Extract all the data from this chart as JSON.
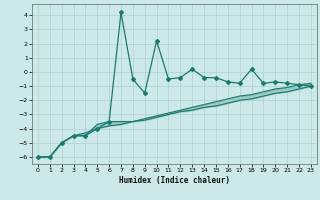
{
  "x": [
    0,
    1,
    2,
    3,
    4,
    5,
    6,
    7,
    8,
    9,
    10,
    11,
    12,
    13,
    14,
    15,
    16,
    17,
    18,
    19,
    20,
    21,
    22,
    23
  ],
  "y_main": [
    -6,
    -6,
    -5,
    -4.5,
    -4.5,
    -4,
    -3.5,
    4.2,
    -0.5,
    -1.5,
    2.2,
    -0.5,
    -0.4,
    0.2,
    -0.4,
    -0.4,
    -0.7,
    -0.8,
    0.2,
    -0.8,
    -0.7,
    -0.8,
    -0.9,
    -1.0
  ],
  "y_line1": [
    -6,
    -6,
    -5,
    -4.5,
    -4.5,
    -3.7,
    -3.5,
    -3.5,
    -3.5,
    -3.4,
    -3.2,
    -3.0,
    -2.8,
    -2.7,
    -2.5,
    -2.4,
    -2.2,
    -2.0,
    -1.9,
    -1.7,
    -1.5,
    -1.4,
    -1.2,
    -1.0
  ],
  "y_line2": [
    -6,
    -6,
    -5,
    -4.5,
    -4.3,
    -4.0,
    -3.8,
    -3.7,
    -3.5,
    -3.3,
    -3.1,
    -2.9,
    -2.7,
    -2.5,
    -2.3,
    -2.1,
    -1.9,
    -1.7,
    -1.6,
    -1.4,
    -1.2,
    -1.1,
    -0.9,
    -0.8
  ],
  "bg_color": "#cce8e8",
  "line_color": "#1a7a6e",
  "grid_color": "#aed0d0",
  "xlabel": "Humidex (Indice chaleur)",
  "ylim": [
    -6.5,
    4.8
  ],
  "xlim": [
    -0.5,
    23.5
  ],
  "yticks": [
    -6,
    -5,
    -4,
    -3,
    -2,
    -1,
    0,
    1,
    2,
    3,
    4
  ],
  "xticks": [
    0,
    1,
    2,
    3,
    4,
    5,
    6,
    7,
    8,
    9,
    10,
    11,
    12,
    13,
    14,
    15,
    16,
    17,
    18,
    19,
    20,
    21,
    22,
    23
  ],
  "tick_label_size": 4.5,
  "xlabel_size": 5.5
}
